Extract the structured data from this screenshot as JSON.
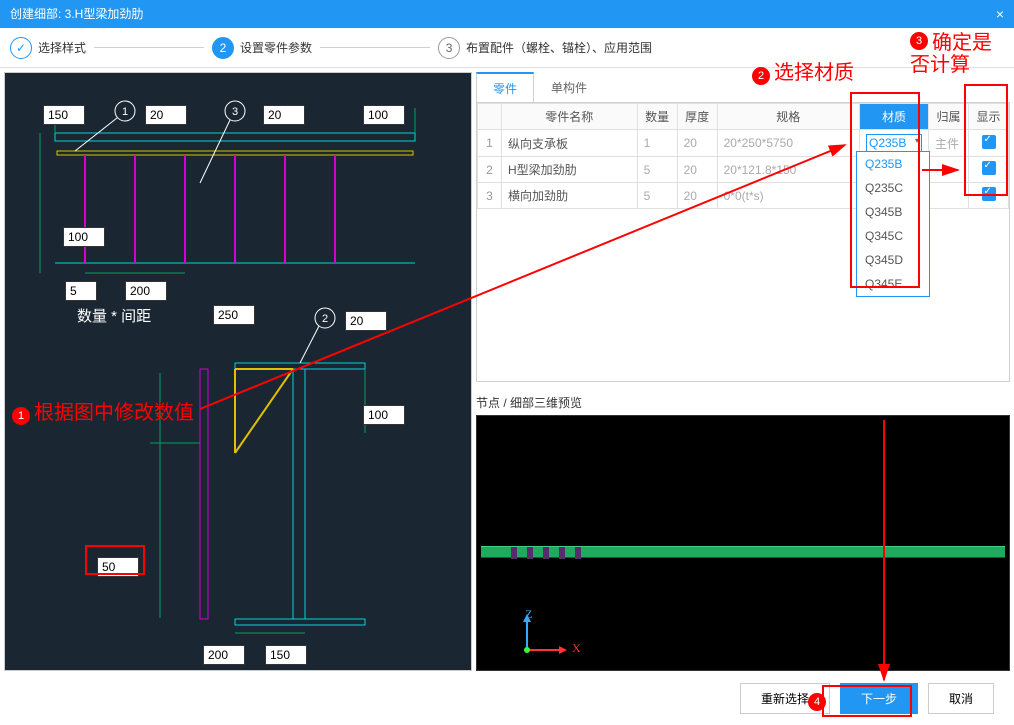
{
  "title": "创建细部: 3.H型梁加劲肋",
  "steps": {
    "s1": {
      "label": "选择样式"
    },
    "s2": {
      "label": "设置零件参数"
    },
    "s3": {
      "label": "布置配件（螺栓、锚栓）、应用范围"
    }
  },
  "tabs": {
    "parts": "零件",
    "single": "单构件"
  },
  "table": {
    "headers": {
      "name": "零件名称",
      "qty": "数量",
      "thk": "厚度",
      "spec": "规格",
      "mat": "材质",
      "belong": "归属",
      "show": "显示"
    },
    "rows": [
      {
        "name": "纵向支承板",
        "qty": "1",
        "thk": "20",
        "spec": "20*250*5750",
        "mat": "Q235B",
        "belong": "主件"
      },
      {
        "name": "H型梁加劲肋",
        "qty": "5",
        "thk": "20",
        "spec": "20*121.8*150",
        "mat": "",
        "belong": ""
      },
      {
        "name": "横向加劲肋",
        "qty": "5",
        "thk": "20",
        "spec": "0*0(t*s)",
        "mat": "",
        "belong": ""
      }
    ],
    "dropdown": [
      "Q235B",
      "Q235C",
      "Q345B",
      "Q345C",
      "Q345D",
      "Q345E"
    ]
  },
  "cad": {
    "v150": "150",
    "v20a": "20",
    "v20b": "20",
    "v100a": "100",
    "v100b": "100",
    "v5": "5",
    "v200a": "200",
    "v250": "250",
    "v20c": "20",
    "v100c": "100",
    "v50": "50",
    "v200b": "200",
    "v150b": "150",
    "qtylabel": "数量 * 间距"
  },
  "preview": {
    "label": "节点 / 细部三维预览",
    "axisZ": "Z",
    "axisX": "X"
  },
  "buttons": {
    "reselect": "重新选择",
    "next": "下一步",
    "cancel": "取消"
  },
  "anno": {
    "a1": "根据图中修改数值",
    "a2": "选择材质",
    "a3a": "确定是",
    "a3b": "否计算"
  },
  "colors": {
    "primary": "#2196f3",
    "red": "#ff0000",
    "cadbg": "#1a2733",
    "cyan": "#00d4d4",
    "yellow": "#e0c000",
    "magenta": "#d400d4",
    "green": "#00a060",
    "beam_green": "#1faa5d"
  }
}
